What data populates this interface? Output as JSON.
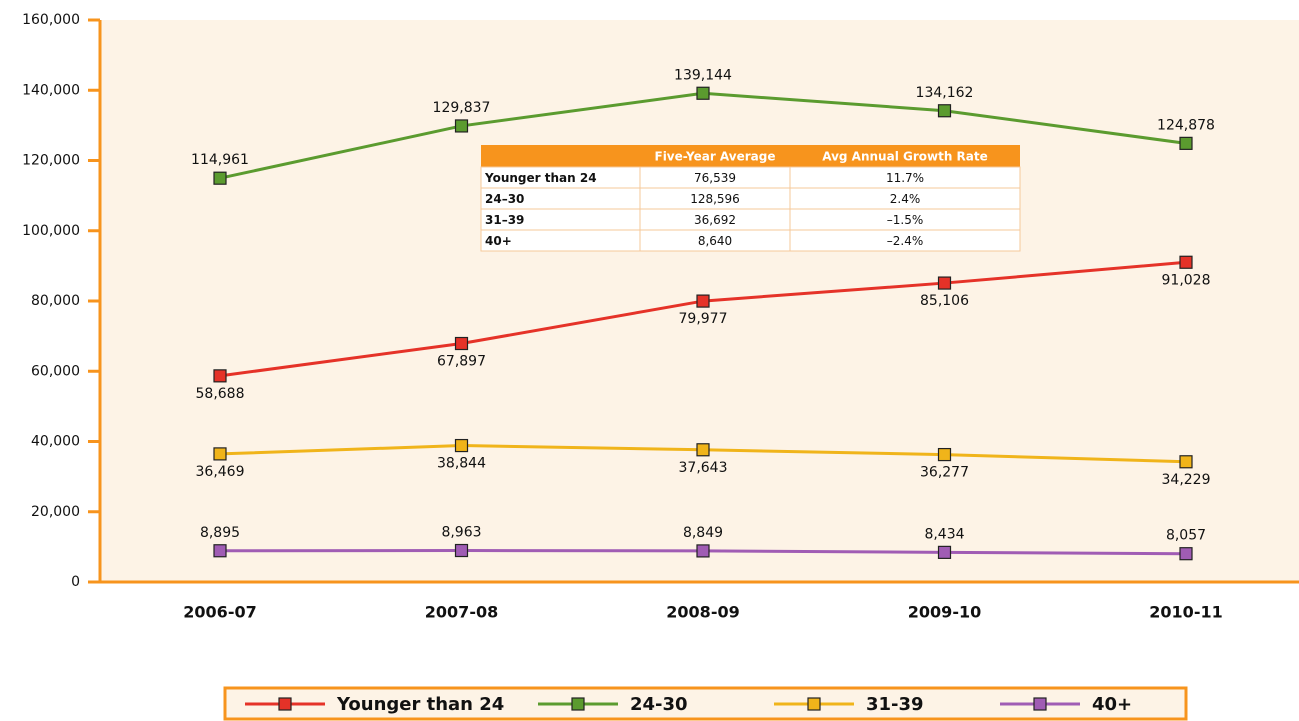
{
  "chart_data": {
    "type": "line",
    "categories": [
      "2006-07",
      "2007-08",
      "2008-09",
      "2009-10",
      "2010-11"
    ],
    "series": [
      {
        "name": "Younger than 24",
        "color": "#e53228",
        "values": [
          58688,
          67897,
          79977,
          85106,
          91028
        ],
        "value_labels": [
          "58,688",
          "67,897",
          "79,977",
          "85,106",
          "91,028"
        ]
      },
      {
        "name": "24-30",
        "color": "#5b9b2f",
        "values": [
          114961,
          129837,
          139144,
          134162,
          124878
        ],
        "value_labels": [
          "114,961",
          "129,837",
          "139,144",
          "134,162",
          "124,878"
        ]
      },
      {
        "name": "31-39",
        "color": "#f0b41a",
        "values": [
          36469,
          38844,
          37643,
          36277,
          34229
        ],
        "value_labels": [
          "36,469",
          "38,844",
          "37,643",
          "36,277",
          "34,229"
        ]
      },
      {
        "name": "40+",
        "color": "#a05cb4",
        "values": [
          8895,
          8963,
          8849,
          8434,
          8057
        ],
        "value_labels": [
          "8,895",
          "8,963",
          "8,849",
          "8,434",
          "8,057"
        ]
      }
    ],
    "ylim": [
      0,
      160000
    ],
    "yticks": [
      0,
      {
        "value": 20000,
        "label": "20,000"
      },
      {
        "value": 40000,
        "label": "40,000"
      },
      {
        "value": 60000,
        "label": "60,000"
      },
      {
        "value": 80000,
        "label": "80,000"
      },
      {
        "value": 100000,
        "label": "100,000"
      },
      {
        "value": 120000,
        "label": "120,000"
      },
      {
        "value": 140000,
        "label": "140,000"
      },
      {
        "value": 160000,
        "label": "160,000"
      }
    ],
    "table": {
      "columns": [
        "Five-Year Average",
        "Avg Annual Growth Rate"
      ],
      "rows": [
        {
          "label": "Younger than 24",
          "cells": [
            "76,539",
            "11.7%"
          ]
        },
        {
          "label": "24–30",
          "cells": [
            "128,596",
            "2.4%"
          ]
        },
        {
          "label": "31–39",
          "cells": [
            "36,692",
            "–1.5%"
          ]
        },
        {
          "label": "40+",
          "cells": [
            "8,640",
            "–2.4%"
          ]
        }
      ]
    }
  }
}
